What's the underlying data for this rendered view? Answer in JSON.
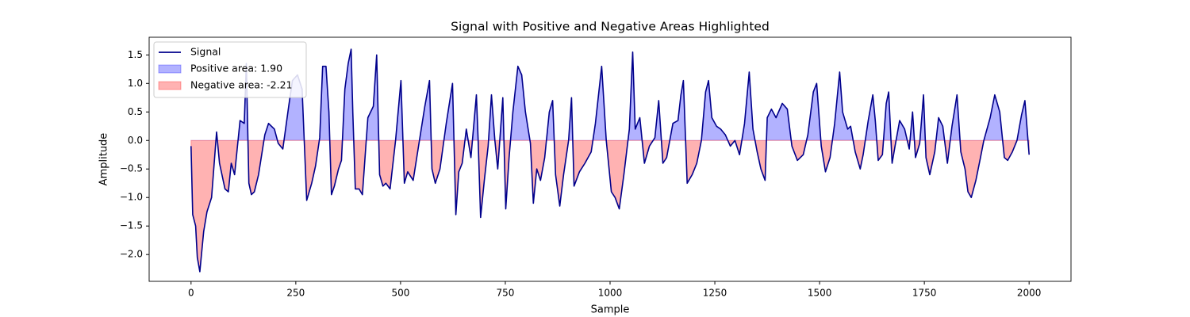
{
  "chart_data": {
    "type": "line",
    "title": "Signal with Positive and Negative Areas Highlighted",
    "xlabel": "Sample",
    "ylabel": "Amplitude",
    "xlim": [
      -100,
      2100
    ],
    "ylim": [
      -2.47,
      1.81
    ],
    "xticks": [
      0,
      250,
      500,
      750,
      1000,
      1250,
      1500,
      1750,
      2000
    ],
    "yticks": [
      {
        "value": -2,
        "label": "−2.0"
      },
      {
        "value": -1.5,
        "label": "−1.5"
      },
      {
        "value": -1,
        "label": "−1.0"
      },
      {
        "value": -0.5,
        "label": "−0.5"
      },
      {
        "value": 0,
        "label": "0.0"
      },
      0.5,
      {
        "value": 1,
        "label": "1.0"
      },
      1.5
    ],
    "legend": "upper left",
    "x": [
      0,
      4,
      11,
      15,
      21,
      30,
      38,
      49,
      61,
      68,
      81,
      89,
      96,
      104,
      117,
      127,
      132,
      138,
      144,
      151,
      161,
      176,
      185,
      199,
      208,
      219,
      233,
      242,
      254,
      265,
      276,
      288,
      297,
      307,
      314,
      322,
      329,
      335,
      342,
      352,
      359,
      367,
      375,
      382,
      386,
      392,
      401,
      409,
      422,
      435,
      443,
      450,
      458,
      465,
      475,
      488,
      501,
      509,
      517,
      530,
      545,
      558,
      569,
      575,
      583,
      594,
      609,
      624,
      632,
      639,
      647,
      657,
      668,
      681,
      685,
      691,
      700,
      709,
      717,
      725,
      732,
      744,
      751,
      759,
      768,
      780,
      789,
      798,
      810,
      817,
      825,
      834,
      844,
      855,
      863,
      870,
      880,
      889,
      901,
      908,
      914,
      927,
      940,
      955,
      965,
      980,
      991,
      1003,
      1012,
      1022,
      1033,
      1046,
      1054,
      1060,
      1071,
      1082,
      1094,
      1107,
      1116,
      1126,
      1135,
      1150,
      1162,
      1169,
      1175,
      1184,
      1196,
      1207,
      1218,
      1228,
      1235,
      1243,
      1254,
      1264,
      1275,
      1287,
      1298,
      1309,
      1321,
      1332,
      1341,
      1351,
      1360,
      1370,
      1375,
      1385,
      1396,
      1411,
      1423,
      1434,
      1447,
      1461,
      1472,
      1485,
      1493,
      1504,
      1514,
      1525,
      1536,
      1548,
      1555,
      1567,
      1574,
      1585,
      1597,
      1604,
      1616,
      1627,
      1633,
      1640,
      1650,
      1659,
      1665,
      1673,
      1680,
      1691,
      1703,
      1714,
      1722,
      1729,
      1739,
      1748,
      1754,
      1763,
      1775,
      1784,
      1794,
      1805,
      1816,
      1828,
      1837,
      1847,
      1854,
      1862,
      1873,
      1884,
      1892,
      1907,
      1918,
      1930,
      1941,
      1949,
      1960,
      1971,
      1982,
      1990,
      2000
    ],
    "series": [
      {
        "name": "Signal",
        "color": "#00008b",
        "values": [
          -0.1,
          -1.3,
          -1.5,
          -2.05,
          -2.3,
          -1.6,
          -1.25,
          -1.0,
          0.15,
          -0.4,
          -0.85,
          -0.9,
          -0.4,
          -0.6,
          0.35,
          0.3,
          1.35,
          -0.75,
          -0.95,
          -0.9,
          -0.6,
          0.1,
          0.3,
          0.2,
          -0.05,
          -0.15,
          0.6,
          1.05,
          1.15,
          0.9,
          -1.05,
          -0.75,
          -0.45,
          0.05,
          1.3,
          1.3,
          0.5,
          -0.95,
          -0.8,
          -0.5,
          -0.35,
          0.9,
          1.35,
          1.6,
          0.5,
          -0.85,
          -0.85,
          -0.95,
          0.4,
          0.6,
          1.5,
          -0.6,
          -0.8,
          -0.75,
          -0.85,
          0.0,
          1.05,
          -0.75,
          -0.55,
          -0.7,
          0.0,
          0.6,
          1.05,
          -0.5,
          -0.75,
          -0.5,
          0.3,
          1.0,
          -1.3,
          -0.55,
          -0.4,
          0.2,
          -0.3,
          0.8,
          0.05,
          -1.35,
          -0.7,
          -0.1,
          0.8,
          0.0,
          -0.5,
          0.75,
          -1.2,
          -0.3,
          0.5,
          1.3,
          1.15,
          0.5,
          -0.05,
          -1.1,
          -0.5,
          -0.7,
          -0.3,
          0.5,
          0.7,
          -0.6,
          -1.15,
          -0.6,
          0.0,
          0.75,
          -0.8,
          -0.55,
          -0.4,
          -0.2,
          0.3,
          1.3,
          0.0,
          -0.9,
          -1.0,
          -1.2,
          -0.6,
          0.2,
          1.55,
          0.2,
          0.4,
          -0.4,
          -0.1,
          0.05,
          0.7,
          -0.4,
          -0.3,
          0.3,
          0.35,
          0.8,
          1.05,
          -0.75,
          -0.6,
          -0.4,
          0.0,
          0.85,
          1.05,
          0.4,
          0.25,
          0.2,
          0.1,
          -0.1,
          0.0,
          -0.25,
          0.3,
          1.2,
          0.2,
          -0.2,
          -0.5,
          -0.7,
          0.4,
          0.55,
          0.4,
          0.65,
          0.55,
          -0.1,
          -0.35,
          -0.25,
          0.1,
          0.85,
          1.0,
          -0.1,
          -0.55,
          -0.3,
          0.3,
          1.2,
          0.5,
          0.2,
          0.25,
          -0.2,
          -0.5,
          -0.25,
          0.35,
          0.8,
          0.35,
          -0.35,
          -0.25,
          0.65,
          0.85,
          -0.4,
          -0.1,
          0.35,
          0.2,
          -0.15,
          0.5,
          -0.3,
          -0.05,
          0.8,
          -0.3,
          -0.6,
          -0.2,
          0.4,
          0.25,
          -0.4,
          0.25,
          0.8,
          -0.2,
          -0.5,
          -0.9,
          -1.0,
          -0.7,
          -0.3,
          0.0,
          0.4,
          0.8,
          0.5,
          -0.3,
          -0.35,
          -0.2,
          0.0,
          0.45,
          0.7,
          -0.25
        ]
      }
    ],
    "fills": [
      {
        "name": "Positive area: 1.90",
        "color": "#0000ff",
        "alpha": 0.3,
        "side": "above"
      },
      {
        "name": "Negative area: -2.21",
        "color": "#ff0000",
        "alpha": 0.3,
        "side": "below"
      }
    ]
  }
}
